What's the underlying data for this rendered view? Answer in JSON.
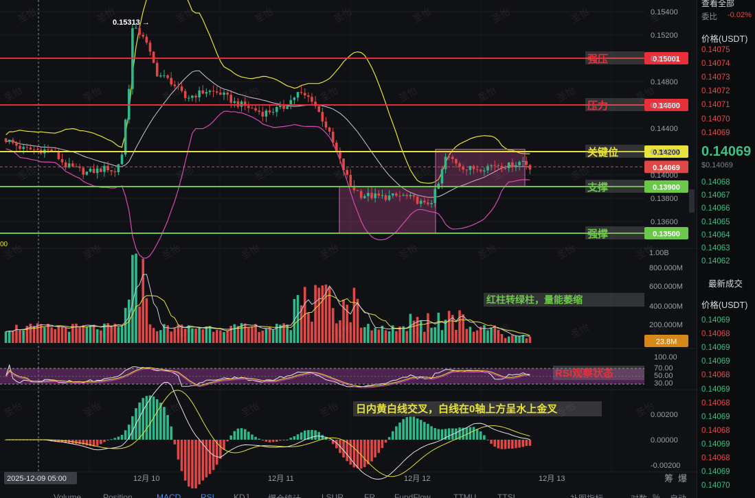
{
  "chart_data": {
    "type": "candlestick",
    "x_ticks": [
      "2025-12-09 05:00",
      "12月 10",
      "12月 11",
      "12月 12",
      "12月 13"
    ],
    "price_axis_ticks": [
      "0.15400",
      "0.15200",
      "0.15000",
      "0.14800",
      "0.14600",
      "0.14400",
      "0.14200",
      "0.14000",
      "0.13800",
      "0.13600"
    ],
    "ylim": [
      0.1348,
      0.1542
    ],
    "current_price": "0.14069",
    "high_annotation": "0.15313",
    "levels": [
      {
        "name": "强压",
        "value": "0.15001",
        "color": "#e8303a"
      },
      {
        "name": "压力",
        "value": "0.14600",
        "color": "#e8303a"
      },
      {
        "name": "关键位",
        "value": "0.14200",
        "color": "#e8e23a"
      },
      {
        "name": "支撑",
        "value": "0.13900",
        "color": "#6cc84a"
      },
      {
        "name": "强撑",
        "value": "0.13500",
        "color": "#6cc84a"
      }
    ],
    "left_axis_label": "00",
    "volume": {
      "axis_ticks": [
        "1.00B",
        "800.000M",
        "600.000M",
        "400.000M",
        "200.000M"
      ],
      "current": "23.8M",
      "note": "红柱转绿柱，量能萎缩"
    },
    "rsi": {
      "axis_ticks": [
        "100.00",
        "70.00",
        "50.00",
        "30.00"
      ],
      "note": "RSI观察状态"
    },
    "macd": {
      "axis_ticks": [
        "0.00200",
        "0.00000",
        "-0.00200"
      ],
      "note": "日内黄白线交叉，白线在0轴上方呈水上金叉"
    },
    "extra_labels": [
      "筹",
      "爆"
    ]
  },
  "right_panel": {
    "title": "查看全部",
    "ratio_label": "委比",
    "ratio_value": "-0.02%",
    "price_header": "价格(USDT)",
    "asks": [
      "0.14075",
      "0.14074",
      "0.14073",
      "0.14072",
      "0.14071",
      "0.14070",
      "0.14069"
    ],
    "mid_price": "0.14069",
    "mid_sub": "$0.14069",
    "bids": [
      "0.14068",
      "0.14067",
      "0.14066",
      "0.14065",
      "0.14064",
      "0.14063",
      "0.14062"
    ],
    "trades_title": "最新成交",
    "trades_header": "价格(USDT)",
    "trades": [
      {
        "p": "0.14069",
        "c": "green"
      },
      {
        "p": "0.14068",
        "c": "red"
      },
      {
        "p": "0.14069",
        "c": "green"
      },
      {
        "p": "0.14069",
        "c": "green"
      },
      {
        "p": "0.14068",
        "c": "red"
      },
      {
        "p": "0.14069",
        "c": "green"
      },
      {
        "p": "0.14068",
        "c": "red"
      },
      {
        "p": "0.14069",
        "c": "green"
      },
      {
        "p": "0.14068",
        "c": "red"
      },
      {
        "p": "0.14069",
        "c": "green"
      },
      {
        "p": "0.14068",
        "c": "red"
      },
      {
        "p": "0.14069",
        "c": "green"
      },
      {
        "p": "0.14070",
        "c": "green"
      }
    ]
  },
  "bottom_tabs": [
    "Volume",
    "Position",
    "MACD",
    "RSI",
    "KDJ",
    "爆仓统计",
    "LSUR",
    "FR",
    "FundFlow",
    "TTMU",
    "TTSL",
    "补图指标",
    "对数",
    "%",
    "自动"
  ],
  "watermark_text": "圣怡"
}
